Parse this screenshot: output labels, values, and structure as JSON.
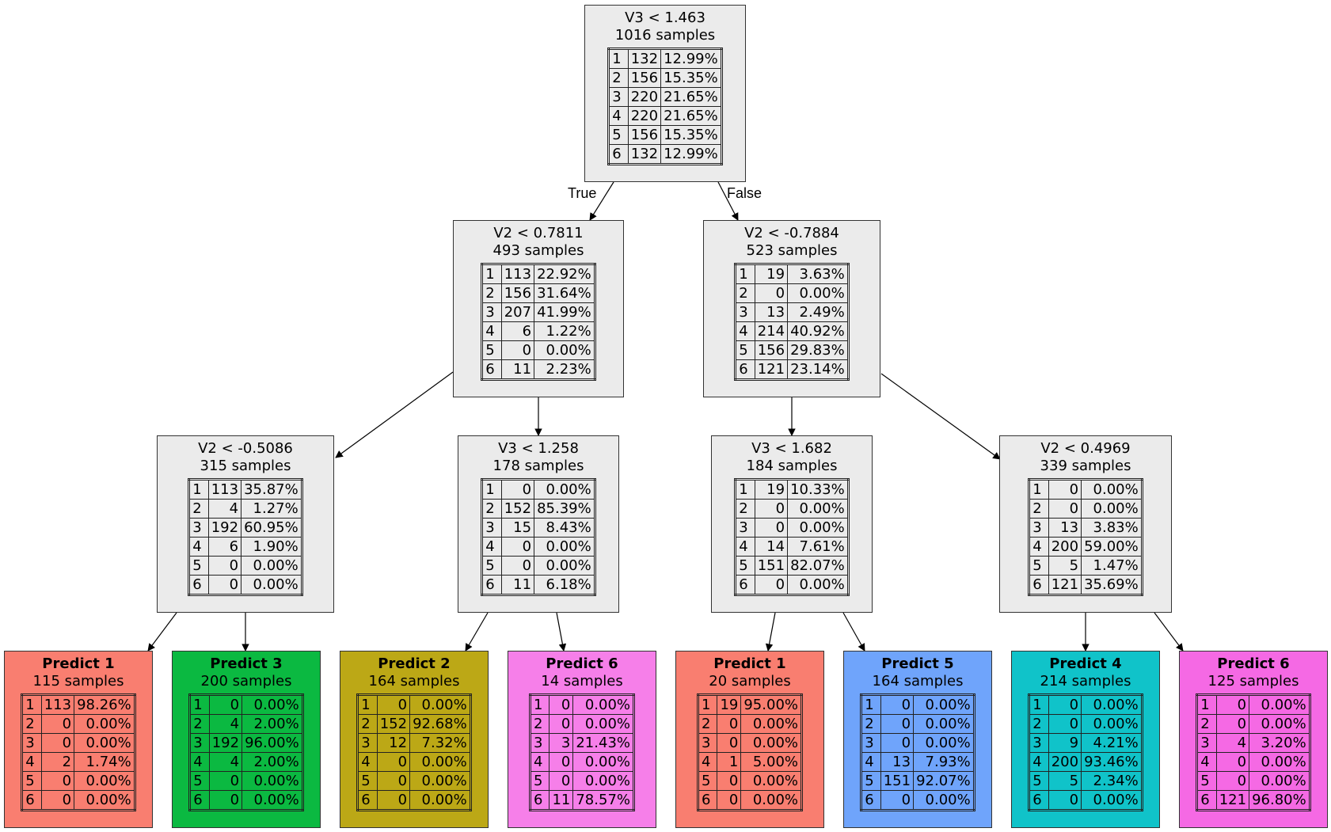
{
  "colors": {
    "internal": "#ebebeb",
    "class_1": "#f97e70",
    "class_2": "#bca816",
    "class_3": "#0bb941",
    "class_4": "#10c3c9",
    "class_5": "#6fa4fb",
    "class_6": "#f67fe9",
    "class_6_alt": "#f569e4"
  },
  "edge_labels": {
    "true": "True",
    "false": "False"
  },
  "nodes": [
    {
      "id": "n0",
      "title": "V3 < 1.463",
      "samples": "1016 samples",
      "rows": [
        [
          "1",
          "132",
          "12.99%"
        ],
        [
          "2",
          "156",
          "15.35%"
        ],
        [
          "3",
          "220",
          "21.65%"
        ],
        [
          "4",
          "220",
          "21.65%"
        ],
        [
          "5",
          "156",
          "15.35%"
        ],
        [
          "6",
          "132",
          "12.99%"
        ]
      ]
    },
    {
      "id": "n1",
      "title": "V2 < 0.7811",
      "samples": "493 samples",
      "rows": [
        [
          "1",
          "113",
          "22.92%"
        ],
        [
          "2",
          "156",
          "31.64%"
        ],
        [
          "3",
          "207",
          "41.99%"
        ],
        [
          "4",
          "6",
          "1.22%"
        ],
        [
          "5",
          "0",
          "0.00%"
        ],
        [
          "6",
          "11",
          "2.23%"
        ]
      ]
    },
    {
      "id": "n2",
      "title": "V2 < -0.7884",
      "samples": "523 samples",
      "rows": [
        [
          "1",
          "19",
          "3.63%"
        ],
        [
          "2",
          "0",
          "0.00%"
        ],
        [
          "3",
          "13",
          "2.49%"
        ],
        [
          "4",
          "214",
          "40.92%"
        ],
        [
          "5",
          "156",
          "29.83%"
        ],
        [
          "6",
          "121",
          "23.14%"
        ]
      ]
    },
    {
      "id": "n3",
      "title": "V2 < -0.5086",
      "samples": "315 samples",
      "rows": [
        [
          "1",
          "113",
          "35.87%"
        ],
        [
          "2",
          "4",
          "1.27%"
        ],
        [
          "3",
          "192",
          "60.95%"
        ],
        [
          "4",
          "6",
          "1.90%"
        ],
        [
          "5",
          "0",
          "0.00%"
        ],
        [
          "6",
          "0",
          "0.00%"
        ]
      ]
    },
    {
      "id": "n4",
      "title": "V3 < 1.258",
      "samples": "178 samples",
      "rows": [
        [
          "1",
          "0",
          "0.00%"
        ],
        [
          "2",
          "152",
          "85.39%"
        ],
        [
          "3",
          "15",
          "8.43%"
        ],
        [
          "4",
          "0",
          "0.00%"
        ],
        [
          "5",
          "0",
          "0.00%"
        ],
        [
          "6",
          "11",
          "6.18%"
        ]
      ]
    },
    {
      "id": "n5",
      "title": "V3 < 1.682",
      "samples": "184 samples",
      "rows": [
        [
          "1",
          "19",
          "10.33%"
        ],
        [
          "2",
          "0",
          "0.00%"
        ],
        [
          "3",
          "0",
          "0.00%"
        ],
        [
          "4",
          "14",
          "7.61%"
        ],
        [
          "5",
          "151",
          "82.07%"
        ],
        [
          "6",
          "0",
          "0.00%"
        ]
      ]
    },
    {
      "id": "n6",
      "title": "V2 < 0.4969",
      "samples": "339 samples",
      "rows": [
        [
          "1",
          "0",
          "0.00%"
        ],
        [
          "2",
          "0",
          "0.00%"
        ],
        [
          "3",
          "13",
          "3.83%"
        ],
        [
          "4",
          "200",
          "59.00%"
        ],
        [
          "5",
          "5",
          "1.47%"
        ],
        [
          "6",
          "121",
          "35.69%"
        ]
      ]
    },
    {
      "id": "l0",
      "title": "Predict 1",
      "samples": "115 samples",
      "rows": [
        [
          "1",
          "113",
          "98.26%"
        ],
        [
          "2",
          "0",
          "0.00%"
        ],
        [
          "3",
          "0",
          "0.00%"
        ],
        [
          "4",
          "2",
          "1.74%"
        ],
        [
          "5",
          "0",
          "0.00%"
        ],
        [
          "6",
          "0",
          "0.00%"
        ]
      ]
    },
    {
      "id": "l1",
      "title": "Predict 3",
      "samples": "200 samples",
      "rows": [
        [
          "1",
          "0",
          "0.00%"
        ],
        [
          "2",
          "4",
          "2.00%"
        ],
        [
          "3",
          "192",
          "96.00%"
        ],
        [
          "4",
          "4",
          "2.00%"
        ],
        [
          "5",
          "0",
          "0.00%"
        ],
        [
          "6",
          "0",
          "0.00%"
        ]
      ]
    },
    {
      "id": "l2",
      "title": "Predict 2",
      "samples": "164 samples",
      "rows": [
        [
          "1",
          "0",
          "0.00%"
        ],
        [
          "2",
          "152",
          "92.68%"
        ],
        [
          "3",
          "12",
          "7.32%"
        ],
        [
          "4",
          "0",
          "0.00%"
        ],
        [
          "5",
          "0",
          "0.00%"
        ],
        [
          "6",
          "0",
          "0.00%"
        ]
      ]
    },
    {
      "id": "l3",
      "title": "Predict 6",
      "samples": "14 samples",
      "rows": [
        [
          "1",
          "0",
          "0.00%"
        ],
        [
          "2",
          "0",
          "0.00%"
        ],
        [
          "3",
          "3",
          "21.43%"
        ],
        [
          "4",
          "0",
          "0.00%"
        ],
        [
          "5",
          "0",
          "0.00%"
        ],
        [
          "6",
          "11",
          "78.57%"
        ]
      ]
    },
    {
      "id": "l4",
      "title": "Predict 1",
      "samples": "20 samples",
      "rows": [
        [
          "1",
          "19",
          "95.00%"
        ],
        [
          "2",
          "0",
          "0.00%"
        ],
        [
          "3",
          "0",
          "0.00%"
        ],
        [
          "4",
          "1",
          "5.00%"
        ],
        [
          "5",
          "0",
          "0.00%"
        ],
        [
          "6",
          "0",
          "0.00%"
        ]
      ]
    },
    {
      "id": "l5",
      "title": "Predict 5",
      "samples": "164 samples",
      "rows": [
        [
          "1",
          "0",
          "0.00%"
        ],
        [
          "2",
          "0",
          "0.00%"
        ],
        [
          "3",
          "0",
          "0.00%"
        ],
        [
          "4",
          "13",
          "7.93%"
        ],
        [
          "5",
          "151",
          "92.07%"
        ],
        [
          "6",
          "0",
          "0.00%"
        ]
      ]
    },
    {
      "id": "l6",
      "title": "Predict 4",
      "samples": "214 samples",
      "rows": [
        [
          "1",
          "0",
          "0.00%"
        ],
        [
          "2",
          "0",
          "0.00%"
        ],
        [
          "3",
          "9",
          "4.21%"
        ],
        [
          "4",
          "200",
          "93.46%"
        ],
        [
          "5",
          "5",
          "2.34%"
        ],
        [
          "6",
          "0",
          "0.00%"
        ]
      ]
    },
    {
      "id": "l7",
      "title": "Predict 6",
      "samples": "125 samples",
      "rows": [
        [
          "1",
          "0",
          "0.00%"
        ],
        [
          "2",
          "0",
          "0.00%"
        ],
        [
          "3",
          "4",
          "3.20%"
        ],
        [
          "4",
          "0",
          "0.00%"
        ],
        [
          "5",
          "0",
          "0.00%"
        ],
        [
          "6",
          "121",
          "96.80%"
        ]
      ]
    }
  ]
}
